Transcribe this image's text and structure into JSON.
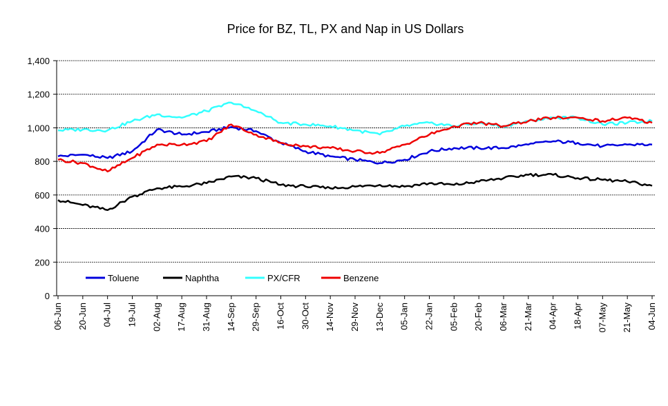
{
  "chart_data": {
    "type": "line",
    "title": "Price for BZ, TL, PX and Nap in US Dollars",
    "xlabel": "",
    "ylabel": "",
    "ylim": [
      0,
      1400
    ],
    "yticks": [
      "0",
      "200",
      "400",
      "600",
      "800",
      "1,000",
      "1,200",
      "1,400"
    ],
    "ytick_values": [
      0,
      200,
      400,
      600,
      800,
      1000,
      1200,
      1400
    ],
    "grid": true,
    "legend_position": "lower-left",
    "categories": [
      "06-Jun",
      "20-Jun",
      "04-Jul",
      "19-Jul",
      "02-Aug",
      "17-Aug",
      "31-Aug",
      "14-Sep",
      "29-Sep",
      "16-Oct",
      "30-Oct",
      "14-Nov",
      "29-Nov",
      "13-Dec",
      "05-Jan",
      "22-Jan",
      "05-Feb",
      "20-Feb",
      "06-Mar",
      "21-Mar",
      "04-Apr",
      "18-Apr",
      "07-May",
      "21-May",
      "04-Jun"
    ],
    "series": [
      {
        "name": "Toluene",
        "color": "#0000dd",
        "values": [
          830,
          840,
          820,
          860,
          990,
          960,
          975,
          1005,
          980,
          910,
          860,
          830,
          810,
          790,
          810,
          860,
          880,
          880,
          880,
          900,
          920,
          910,
          890,
          900,
          900
        ]
      },
      {
        "name": "Naphtha",
        "color": "#000000",
        "values": [
          570,
          540,
          510,
          590,
          640,
          650,
          670,
          710,
          700,
          660,
          650,
          640,
          650,
          660,
          650,
          670,
          660,
          680,
          700,
          720,
          720,
          700,
          690,
          680,
          655
        ]
      },
      {
        "name": "PX/CFR",
        "color": "#33ffff",
        "values": [
          985,
          990,
          985,
          1040,
          1080,
          1060,
          1100,
          1150,
          1100,
          1030,
          1020,
          1010,
          985,
          960,
          1010,
          1030,
          1010,
          1030,
          1010,
          1040,
          1060,
          1060,
          1020,
          1030,
          1040
        ]
      },
      {
        "name": "Benzene",
        "color": "#ee0000",
        "values": [
          810,
          790,
          740,
          820,
          900,
          900,
          920,
          1020,
          960,
          910,
          890,
          880,
          860,
          850,
          900,
          960,
          1010,
          1030,
          1010,
          1040,
          1060,
          1060,
          1040,
          1060,
          1030
        ]
      }
    ]
  }
}
